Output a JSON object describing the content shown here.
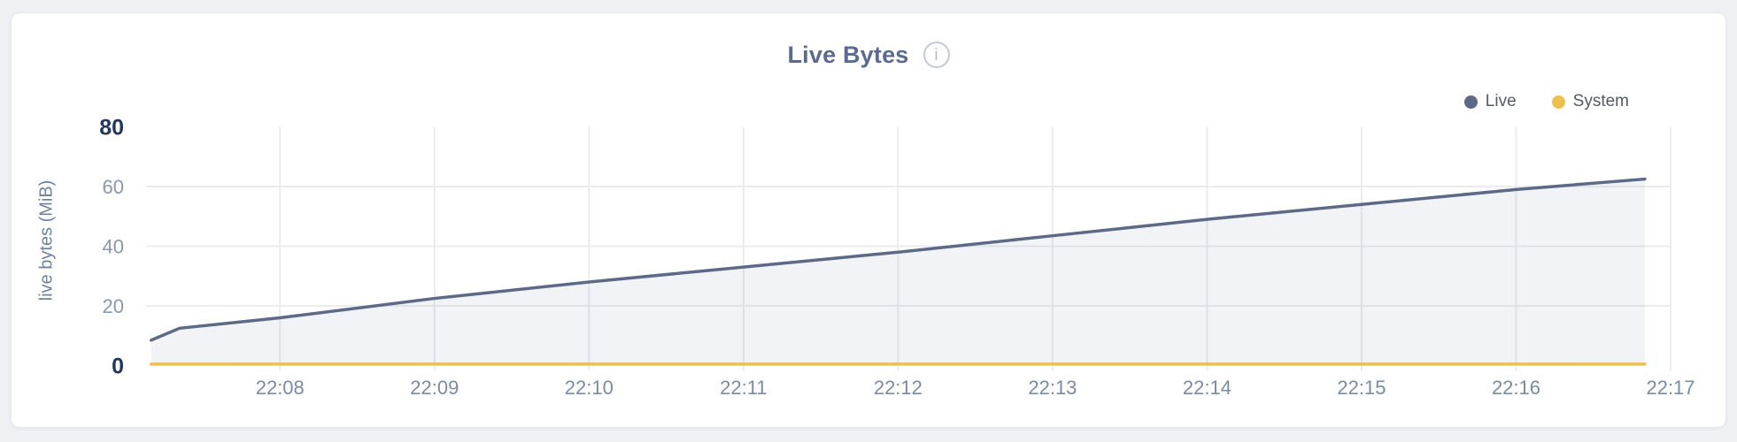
{
  "header": {
    "title": "Live Bytes",
    "info_glyph": "i"
  },
  "chart_data": {
    "type": "area",
    "title": "Live Bytes",
    "xlabel": "",
    "ylabel": "live bytes (MiB)",
    "ylim": [
      0,
      80
    ],
    "yticks": [
      0,
      20,
      40,
      60,
      80
    ],
    "xticklabels": [
      "22:08",
      "22:09",
      "22:10",
      "22:11",
      "22:12",
      "22:13",
      "22:14",
      "22:15",
      "22:16",
      "22:17"
    ],
    "x_domain": [
      "22:07:08",
      "22:17:00"
    ],
    "grid": true,
    "legend_position": "top-right",
    "series": [
      {
        "name": "Live",
        "color": "#5d6a87",
        "area_fill": "rgba(93,106,135,0.08)",
        "points": [
          [
            "22:07:10",
            8.5
          ],
          [
            "22:07:21",
            12.5
          ],
          [
            "22:08:00",
            16
          ],
          [
            "22:09:00",
            22.5
          ],
          [
            "22:10:00",
            28
          ],
          [
            "22:11:00",
            33
          ],
          [
            "22:12:00",
            38
          ],
          [
            "22:13:00",
            43.5
          ],
          [
            "22:14:00",
            49
          ],
          [
            "22:15:00",
            54
          ],
          [
            "22:16:00",
            59
          ],
          [
            "22:16:50",
            62.5
          ]
        ]
      },
      {
        "name": "System",
        "color": "#ecc04d",
        "points": [
          [
            "22:07:10",
            0.5
          ],
          [
            "22:16:50",
            0.5
          ]
        ]
      }
    ]
  }
}
